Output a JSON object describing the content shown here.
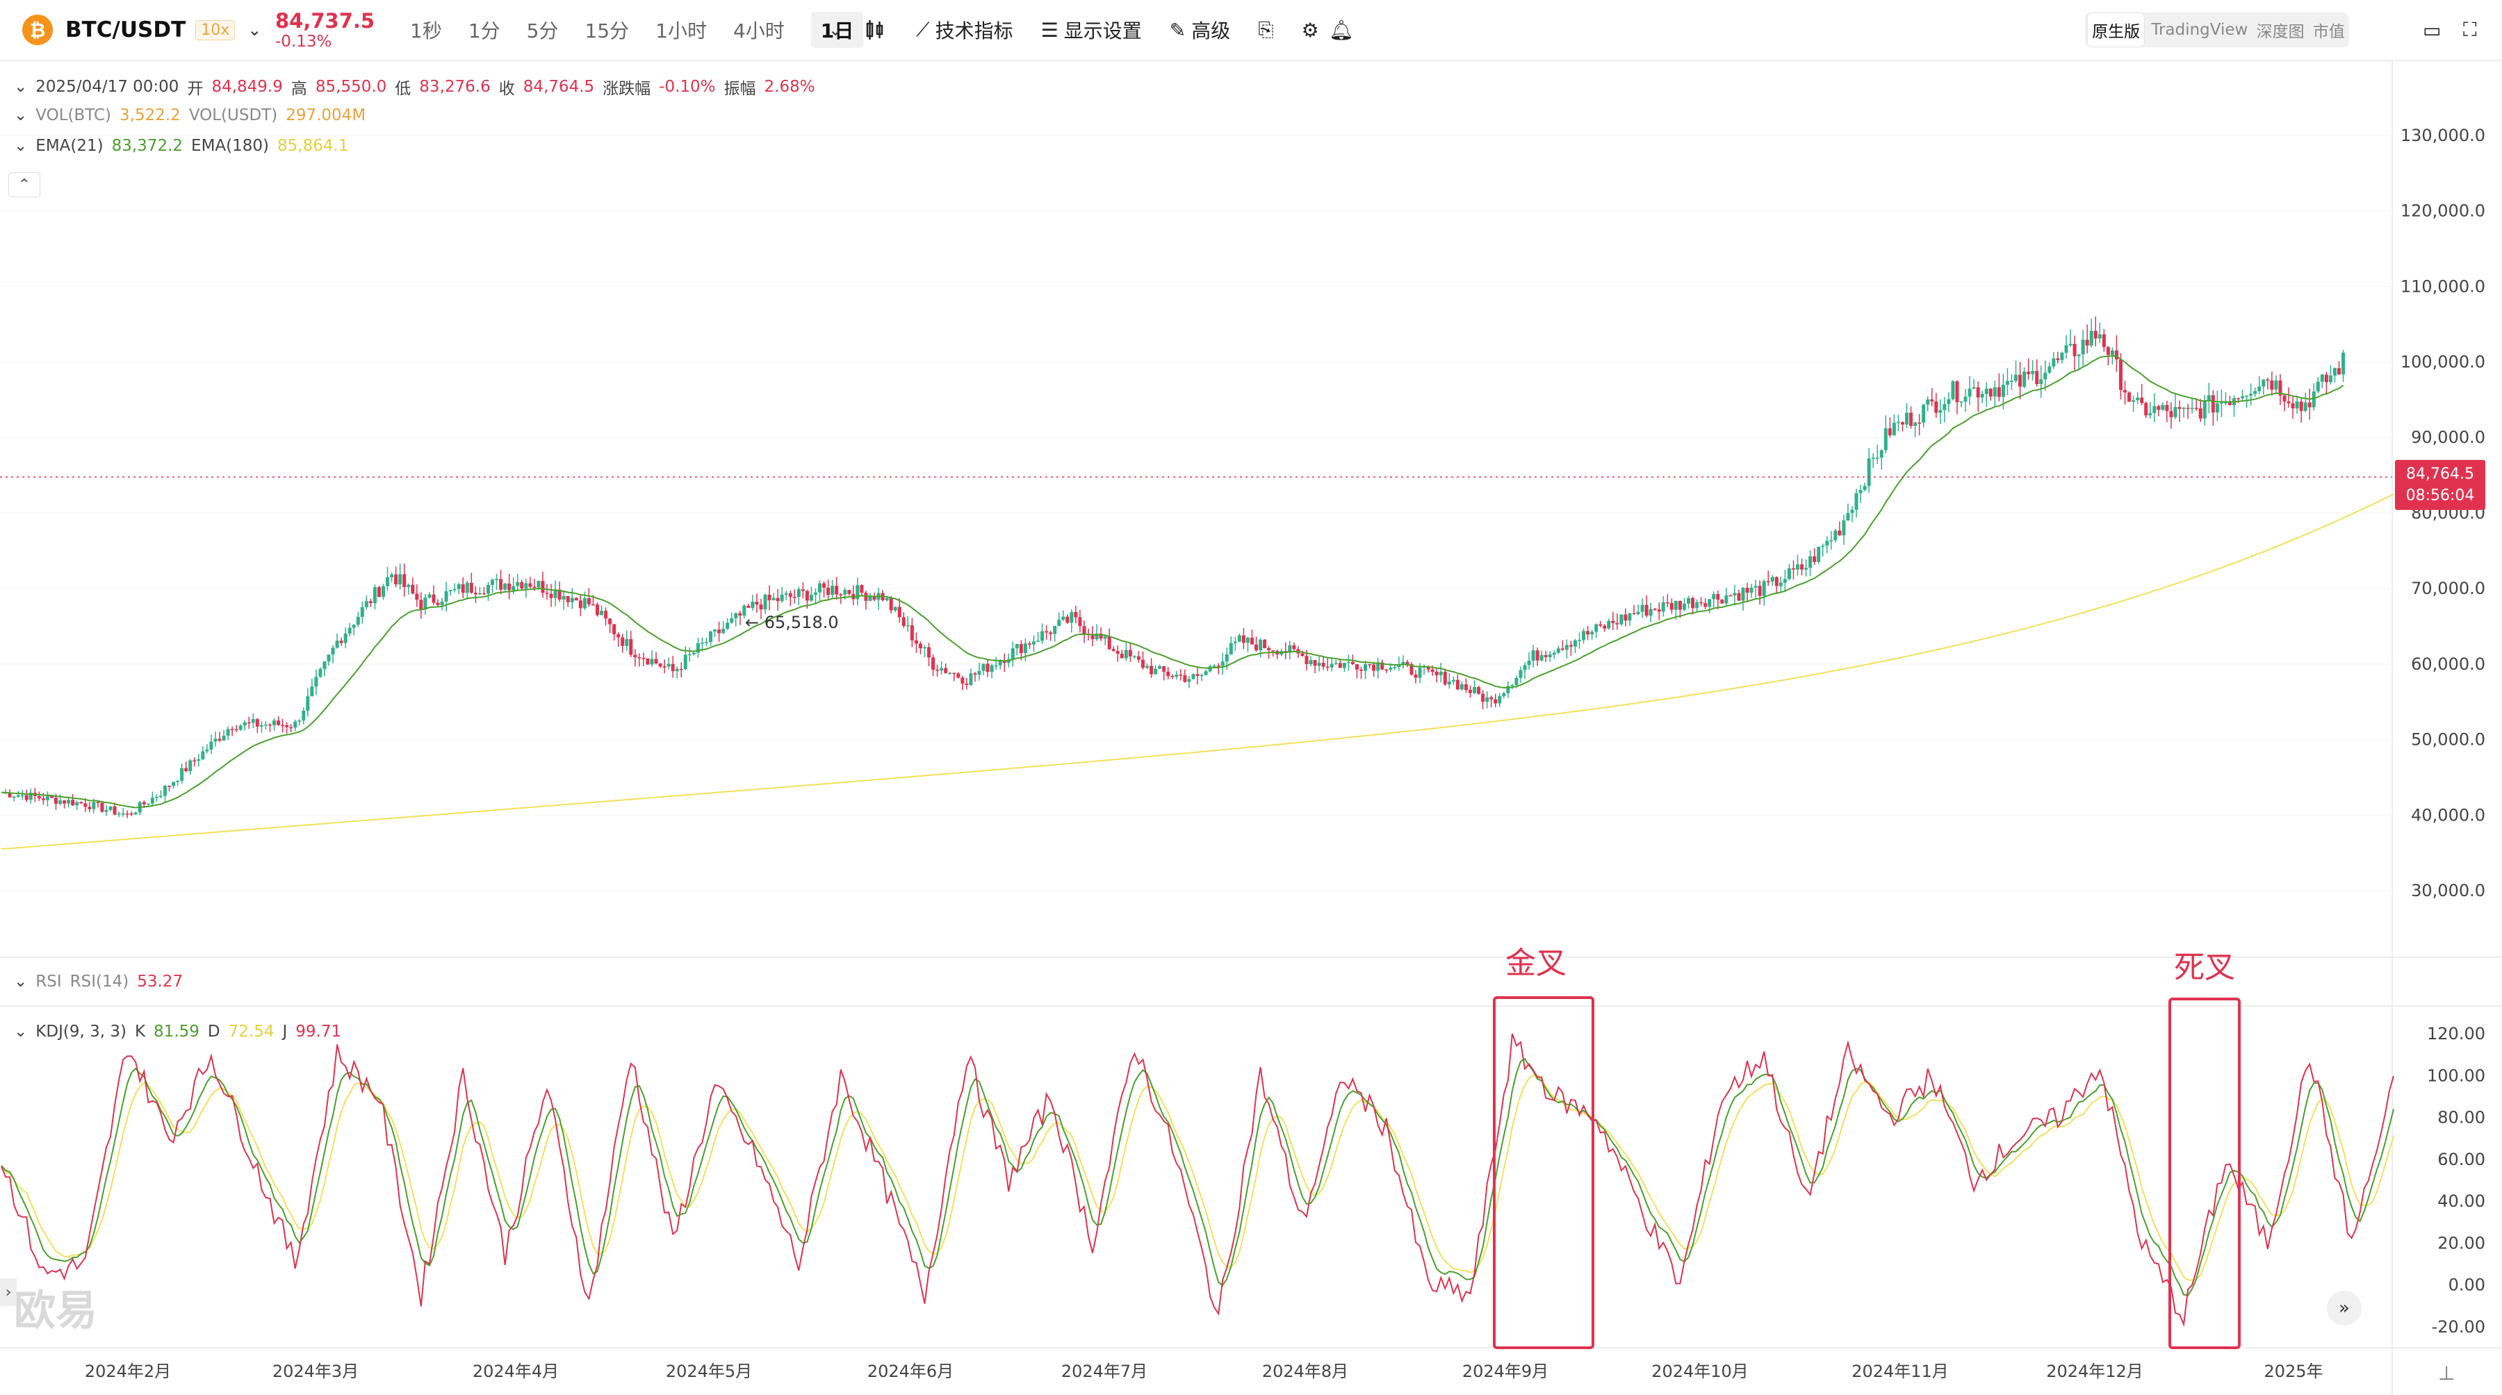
{
  "header": {
    "coin_icon": "bitcoin-icon",
    "pair": "BTC/USDT",
    "leverage": "10x",
    "last_price": "84,737.5",
    "change_pct": "-0.13%",
    "timeframes": [
      "1秒",
      "1分",
      "5分",
      "15分",
      "1小时",
      "4小时"
    ],
    "selected_timeframe": "1日",
    "tools": {
      "indicators": "技术指标",
      "display": "显示设置",
      "advanced": "高级"
    },
    "views": [
      "原生版",
      "TradingView",
      "深度图",
      "市值"
    ],
    "active_view": "原生版"
  },
  "legend": {
    "ohlc": {
      "date": "2025/04/17 00:00",
      "open_label": "开",
      "open": "84,849.9",
      "high_label": "高",
      "high": "85,550.0",
      "low_label": "低",
      "low": "83,276.6",
      "close_label": "收",
      "close": "84,764.5",
      "change_label": "涨跌幅",
      "change": "-0.10%",
      "amp_label": "振幅",
      "amp": "2.68%"
    },
    "vol": {
      "btc_label": "VOL(BTC)",
      "btc": "3,522.2",
      "usdt_label": "VOL(USDT)",
      "usdt": "297.004M"
    },
    "ema": {
      "ema21_label": "EMA(21)",
      "ema21": "83,372.2",
      "ema180_label": "EMA(180)",
      "ema180": "85,864.1"
    },
    "rsi": {
      "label": "RSI",
      "rsi14_label": "RSI(14)",
      "rsi14": "53.27"
    },
    "kdj": {
      "label": "KDJ(9, 3, 3)",
      "k_label": "K",
      "k": "81.59",
      "d_label": "D",
      "d": "72.54",
      "j_label": "J",
      "j": "99.71"
    }
  },
  "price_tag": {
    "price": "84,764.5",
    "countdown": "08:56:04"
  },
  "annotations": {
    "golden_cross": "金叉",
    "death_cross": "死叉"
  },
  "watermark": "欧易",
  "colors": {
    "up": "#2fb18a",
    "down": "#e0324f",
    "ema21": "#4aa02c",
    "ema180": "#f2e15a",
    "k": "#4aa02c",
    "d": "#f2e15a",
    "j": "#e0324f",
    "annotation": "#e0324f"
  },
  "chart_data": {
    "type": "candlestick",
    "x_labels": [
      "2024年2月",
      "2024年3月",
      "2024年4月",
      "2024年5月",
      "2024年6月",
      "2024年7月",
      "2024年8月",
      "2024年9月",
      "2024年10月",
      "2024年11月",
      "2024年12月",
      "2025年"
    ],
    "price_axis": {
      "ticks": [
        130000,
        120000,
        110000,
        100000,
        90000,
        80000,
        70000,
        60000,
        50000,
        40000,
        30000
      ],
      "tick_labels": [
        "130,000.0",
        "120,000.0",
        "110,000.0",
        "100,000.0",
        "90,000.0",
        "80,000.0",
        "70,000.0",
        "60,000.0",
        "50,000.0",
        "40,000.0",
        "30,000.0"
      ]
    },
    "kdj_axis": {
      "ticks": [
        120,
        100,
        80,
        60,
        40,
        20,
        0,
        -20
      ],
      "tick_labels": [
        "120.00",
        "100.00",
        "80.00",
        "60.00",
        "40.00",
        "20.00",
        "0.00",
        "-20.00"
      ]
    },
    "price_path_points": [
      [
        0,
        43000
      ],
      [
        20,
        41500
      ],
      [
        30,
        40000
      ],
      [
        38,
        43000
      ],
      [
        55,
        52000
      ],
      [
        70,
        52000
      ],
      [
        80,
        63000
      ],
      [
        93,
        72000
      ],
      [
        100,
        68000
      ],
      [
        110,
        70000
      ],
      [
        125,
        71000
      ],
      [
        140,
        68000
      ],
      [
        150,
        62000
      ],
      [
        160,
        59000
      ],
      [
        168,
        63000
      ],
      [
        180,
        68000
      ],
      [
        198,
        70000
      ],
      [
        210,
        69000
      ],
      [
        222,
        60000
      ],
      [
        230,
        58000
      ],
      [
        245,
        63000
      ],
      [
        255,
        66000
      ],
      [
        265,
        62000
      ],
      [
        275,
        59000
      ],
      [
        285,
        58000
      ],
      [
        295,
        63000
      ],
      [
        305,
        62000
      ],
      [
        315,
        60000
      ],
      [
        330,
        60000
      ],
      [
        345,
        58000
      ],
      [
        355,
        55000
      ],
      [
        365,
        61000
      ],
      [
        378,
        64000
      ],
      [
        390,
        67000
      ],
      [
        400,
        68000
      ],
      [
        410,
        69000
      ],
      [
        420,
        70000
      ],
      [
        430,
        73000
      ],
      [
        438,
        78000
      ],
      [
        445,
        86000
      ],
      [
        450,
        91000
      ],
      [
        465,
        96000
      ],
      [
        480,
        97000
      ],
      [
        490,
        100000
      ],
      [
        500,
        104000
      ],
      [
        508,
        94000
      ],
      [
        520,
        93000
      ],
      [
        530,
        95000
      ],
      [
        540,
        98000
      ],
      [
        548,
        94000
      ],
      [
        558,
        100000
      ]
    ],
    "dated_values": [
      {
        "label": "current close",
        "value": 84764.5
      },
      {
        "label": "marked low",
        "value": 65518.0
      }
    ],
    "price_marker": "65,518.0",
    "kdj_j_points": [
      [
        0,
        60
      ],
      [
        10,
        5
      ],
      [
        20,
        10
      ],
      [
        30,
        115
      ],
      [
        40,
        70
      ],
      [
        50,
        110
      ],
      [
        60,
        60
      ],
      [
        70,
        10
      ],
      [
        80,
        110
      ],
      [
        90,
        90
      ],
      [
        100,
        -5
      ],
      [
        110,
        100
      ],
      [
        120,
        15
      ],
      [
        130,
        95
      ],
      [
        140,
        -10
      ],
      [
        150,
        110
      ],
      [
        160,
        20
      ],
      [
        170,
        95
      ],
      [
        180,
        60
      ],
      [
        190,
        10
      ],
      [
        200,
        100
      ],
      [
        210,
        50
      ],
      [
        220,
        -5
      ],
      [
        230,
        110
      ],
      [
        240,
        50
      ],
      [
        250,
        90
      ],
      [
        260,
        20
      ],
      [
        270,
        115
      ],
      [
        280,
        60
      ],
      [
        290,
        -15
      ],
      [
        300,
        100
      ],
      [
        310,
        30
      ],
      [
        320,
        100
      ],
      [
        330,
        75
      ],
      [
        340,
        0
      ],
      [
        350,
        -5
      ],
      [
        360,
        115
      ],
      [
        370,
        90
      ],
      [
        380,
        80
      ],
      [
        390,
        40
      ],
      [
        400,
        0
      ],
      [
        410,
        90
      ],
      [
        420,
        110
      ],
      [
        430,
        40
      ],
      [
        440,
        110
      ],
      [
        450,
        80
      ],
      [
        460,
        100
      ],
      [
        470,
        50
      ],
      [
        480,
        70
      ],
      [
        490,
        80
      ],
      [
        500,
        105
      ],
      [
        510,
        20
      ],
      [
        520,
        -15
      ],
      [
        530,
        60
      ],
      [
        540,
        20
      ],
      [
        550,
        110
      ],
      [
        560,
        20
      ],
      [
        570,
        95
      ]
    ]
  }
}
